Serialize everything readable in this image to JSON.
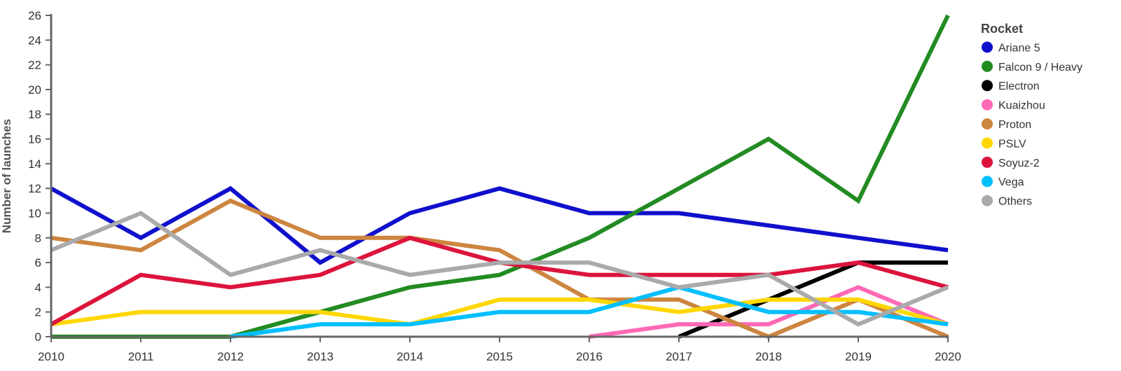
{
  "chart_data": {
    "type": "line",
    "title": "",
    "xlabel": "",
    "ylabel": "Number of launches",
    "x": [
      2010,
      2011,
      2012,
      2013,
      2014,
      2015,
      2016,
      2017,
      2018,
      2019,
      2020
    ],
    "ylim": [
      0,
      26
    ],
    "yticks": [
      0,
      2,
      4,
      6,
      8,
      10,
      12,
      14,
      16,
      18,
      20,
      22,
      24,
      26
    ],
    "grid": false,
    "legend": {
      "title": "Rocket",
      "placement": "right"
    },
    "series": [
      {
        "name": "Ariane 5",
        "color": "#1010cc",
        "values": [
          12,
          8,
          12,
          6,
          10,
          12,
          10,
          10,
          9,
          8,
          7
        ]
      },
      {
        "name": "Falcon 9 / Heavy",
        "color": "#228b22",
        "values": [
          0,
          0,
          0,
          2,
          4,
          5,
          8,
          12,
          16,
          11,
          26
        ]
      },
      {
        "name": "Electron",
        "color": "#000000",
        "values": [
          null,
          null,
          null,
          null,
          null,
          null,
          null,
          0,
          3,
          6,
          6
        ]
      },
      {
        "name": "Kuaizhou",
        "color": "#ff69b4",
        "values": [
          null,
          null,
          null,
          null,
          null,
          null,
          0,
          1,
          1,
          4,
          1
        ]
      },
      {
        "name": "Proton",
        "color": "#cd853f",
        "values": [
          8,
          7,
          11,
          8,
          8,
          7,
          3,
          3,
          0,
          3,
          0
        ]
      },
      {
        "name": "PSLV",
        "color": "#ffd700",
        "values": [
          1,
          2,
          2,
          2,
          1,
          3,
          3,
          2,
          3,
          3,
          1
        ]
      },
      {
        "name": "Soyuz-2",
        "color": "#dc143c",
        "values": [
          1,
          5,
          4,
          5,
          8,
          6,
          5,
          5,
          5,
          6,
          4
        ]
      },
      {
        "name": "Vega",
        "color": "#00bfff",
        "values": [
          null,
          null,
          0,
          1,
          1,
          2,
          2,
          4,
          2,
          2,
          1
        ]
      },
      {
        "name": "Others",
        "color": "#aaaaaa",
        "values": [
          7,
          10,
          5,
          7,
          5,
          6,
          6,
          4,
          5,
          1,
          4
        ]
      }
    ]
  }
}
